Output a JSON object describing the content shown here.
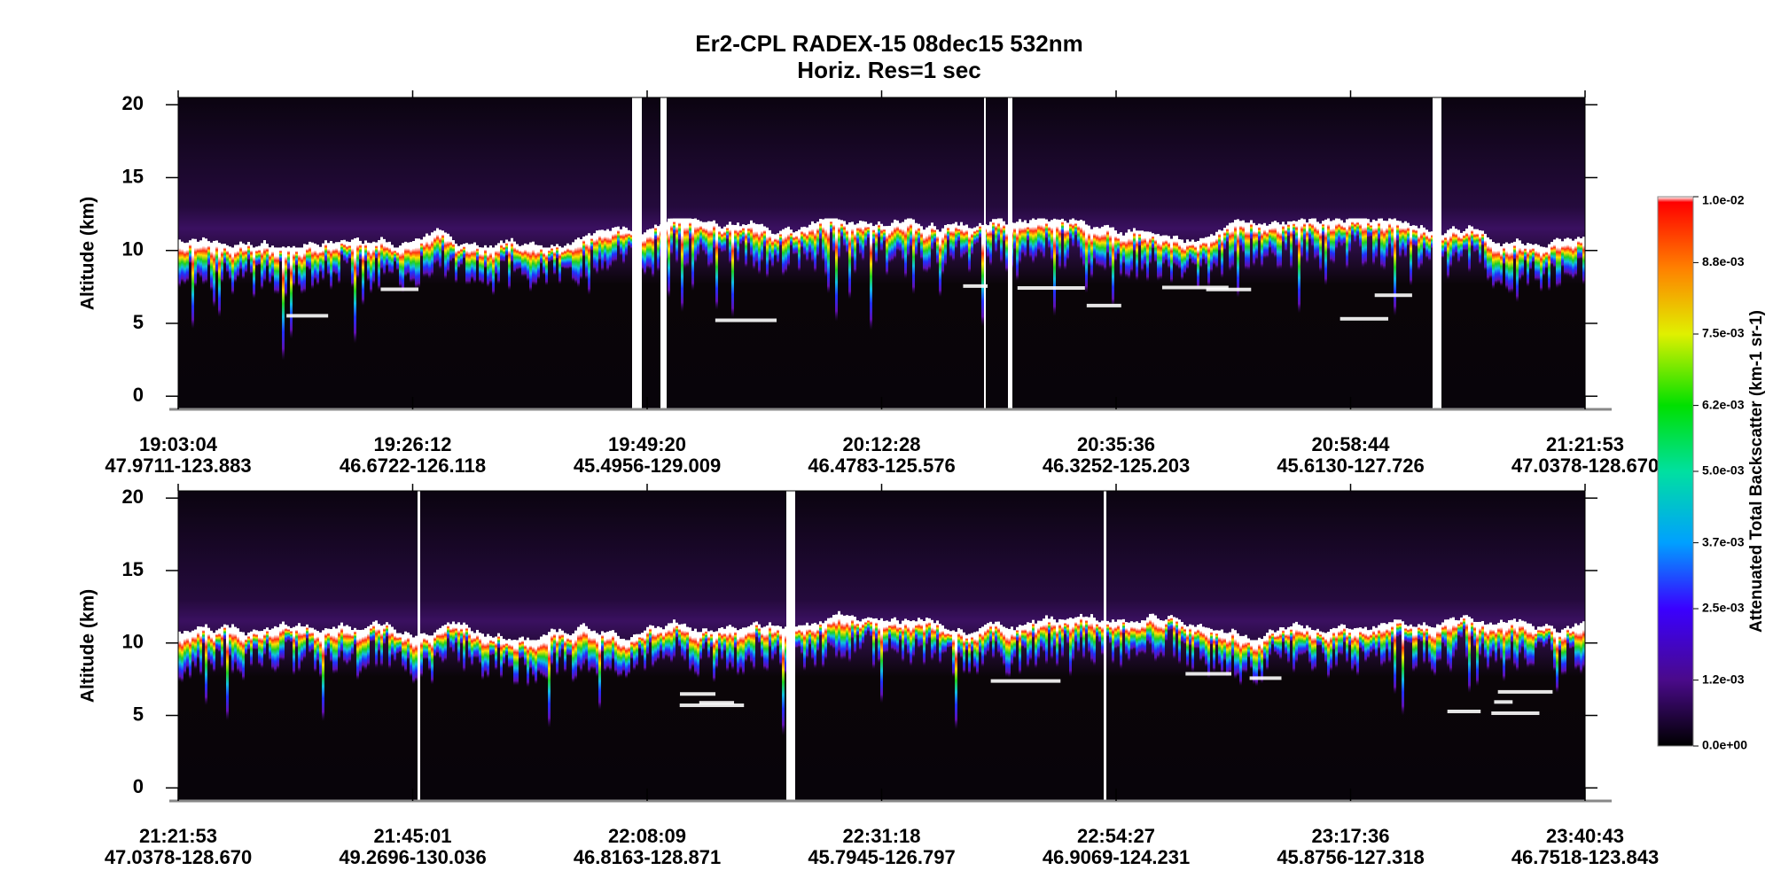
{
  "title": "Er2-CPL  RADEX-15  08dec15  532nm",
  "subtitle": "Horiz. Res=1 sec",
  "chart_data": [
    {
      "type": "curtain",
      "y_label": "Altitude (km)",
      "ylim": [
        -0.9,
        20.5
      ],
      "yticks": [
        0,
        5,
        10,
        15,
        20
      ],
      "xticks": [
        {
          "time": "19:03:04",
          "location": "47.9711-123.883"
        },
        {
          "time": "19:26:12",
          "location": "46.6722-126.118"
        },
        {
          "time": "19:49:20",
          "location": "45.4956-129.009"
        },
        {
          "time": "20:12:28",
          "location": "46.4783-125.576"
        },
        {
          "time": "20:35:36",
          "location": "46.3252-125.203"
        },
        {
          "time": "20:58:44",
          "location": "45.6130-127.726"
        },
        {
          "time": "21:21:53",
          "location": "47.0378-128.670"
        }
      ]
    },
    {
      "type": "curtain",
      "y_label": "Altitude (km)",
      "ylim": [
        -0.9,
        20.5
      ],
      "yticks": [
        0,
        5,
        10,
        15,
        20
      ],
      "xticks": [
        {
          "time": "21:21:53",
          "location": "47.0378-128.670"
        },
        {
          "time": "21:45:01",
          "location": "49.2696-130.036"
        },
        {
          "time": "22:08:09",
          "location": "46.8163-128.871"
        },
        {
          "time": "22:31:18",
          "location": "45.7945-126.797"
        },
        {
          "time": "22:54:27",
          "location": "46.9069-124.231"
        },
        {
          "time": "23:17:36",
          "location": "45.8756-127.318"
        },
        {
          "time": "23:40:43",
          "location": "46.7518-123.843"
        }
      ]
    }
  ],
  "colorbar": {
    "label": "Attenuated Total Backscatter (km-1 sr-1)",
    "clim": [
      0,
      0.01
    ],
    "ticks": [
      {
        "value": 0,
        "label": "0.0e+00"
      },
      {
        "value": 0.0012,
        "label": "1.2e-03"
      },
      {
        "value": 0.0025,
        "label": "2.5e-03"
      },
      {
        "value": 0.0037,
        "label": "3.7e-03"
      },
      {
        "value": 0.005,
        "label": "5.0e-03"
      },
      {
        "value": 0.0062,
        "label": "6.2e-03"
      },
      {
        "value": 0.0075,
        "label": "7.5e-03"
      },
      {
        "value": 0.0088,
        "label": "8.8e-03"
      },
      {
        "value": 0.01,
        "label": "1.0e-02"
      }
    ]
  }
}
